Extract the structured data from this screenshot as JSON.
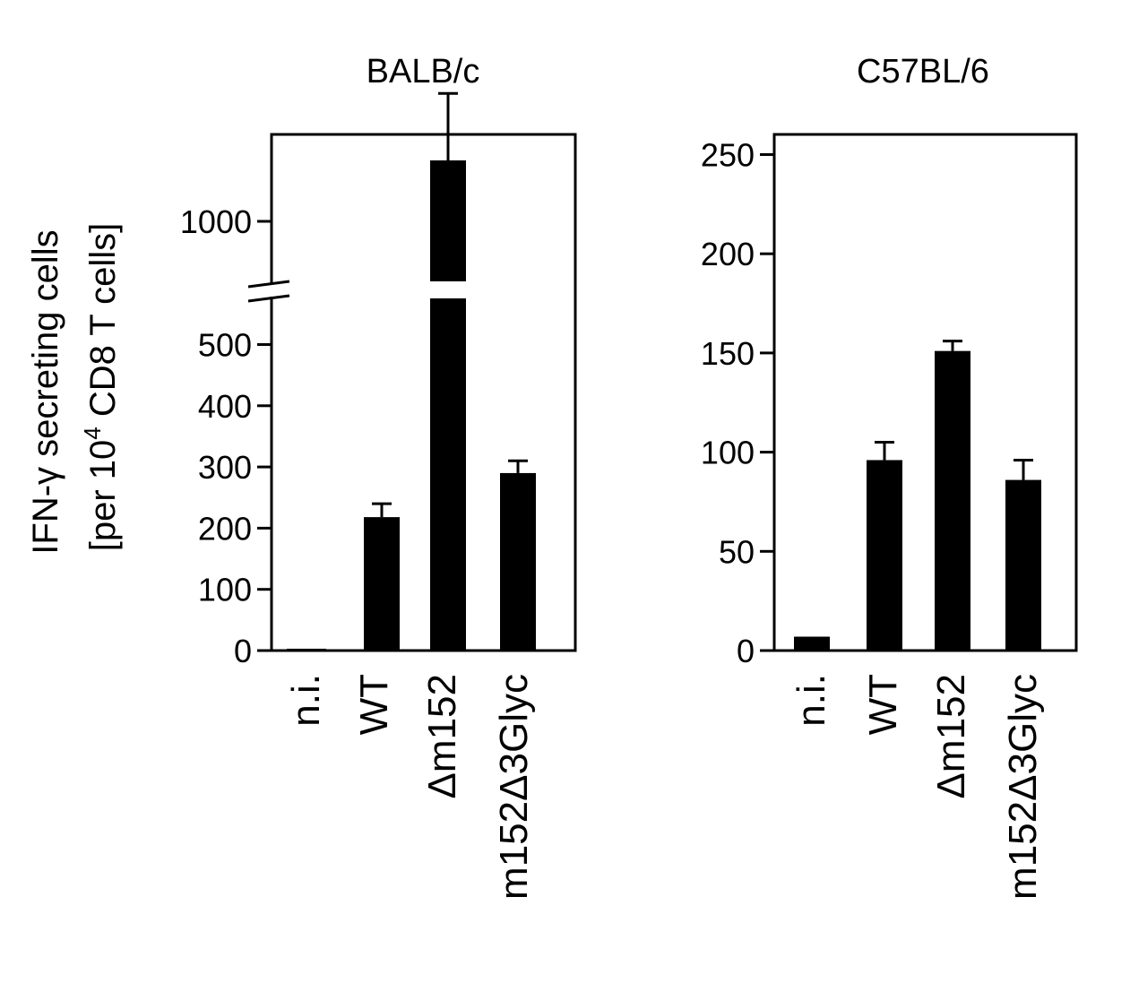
{
  "figure": {
    "ylabel_line1": "IFN-γ secreting cells",
    "ylabel_line2_pre": "[per 10",
    "ylabel_line2_sup": "4",
    "ylabel_line2_post": " CD8 T cells]"
  },
  "chart_data": [
    {
      "type": "bar",
      "title": "BALB/c",
      "ylabel": "IFN-γ secreting cells [per 10⁴ CD8 T cells]",
      "categories": [
        "n.i.",
        "WT",
        "Δm152",
        "m152Δ3Glyc"
      ],
      "values": [
        3,
        218,
        1100,
        290
      ],
      "errors": [
        0,
        22,
        110,
        20
      ],
      "axis_break": [
        600,
        950
      ],
      "yticks": [
        0,
        100,
        200,
        300,
        400,
        500,
        1000
      ],
      "ylim": [
        0,
        1230
      ],
      "bar_color": "#000000"
    },
    {
      "type": "bar",
      "title": "C57BL/6",
      "categories": [
        "n.i.",
        "WT",
        "Δm152",
        "m152Δ3Glyc"
      ],
      "values": [
        7,
        96,
        151,
        86
      ],
      "errors": [
        0,
        9,
        5,
        10
      ],
      "yticks": [
        0,
        50,
        100,
        150,
        200,
        250
      ],
      "ylim": [
        0,
        261
      ],
      "bar_color": "#000000"
    }
  ]
}
